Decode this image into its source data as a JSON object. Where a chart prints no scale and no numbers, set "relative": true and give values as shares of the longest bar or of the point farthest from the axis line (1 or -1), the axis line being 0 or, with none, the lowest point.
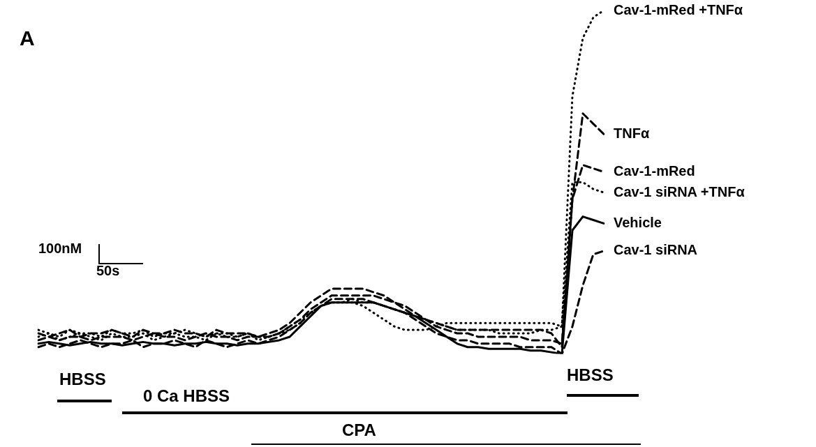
{
  "chart_data": {
    "type": "line",
    "relative": true,
    "legend": false,
    "grid": false,
    "marker": "none",
    "categories": [
      null,
      null,
      null,
      null,
      null,
      null,
      null,
      null,
      null,
      null,
      null,
      null,
      null,
      null,
      null,
      null,
      null,
      null,
      null,
      null,
      null,
      null,
      null,
      null,
      null,
      null,
      null,
      null,
      null,
      null,
      null,
      null,
      null,
      null,
      null,
      null,
      null,
      null,
      null,
      null,
      null,
      null,
      null,
      null,
      null,
      null,
      null,
      null,
      null,
      null,
      null,
      null,
      null,
      null,
      null
    ],
    "series": [
      {
        "name": "Cav-1-mRed +TNFα",
        "color": "#000000",
        "line_style": "dotted",
        "values": [
          0.05,
          0.06,
          0.04,
          0.05,
          0.06,
          0.05,
          0.04,
          0.06,
          0.05,
          0.05,
          0.06,
          0.04,
          0.05,
          0.06,
          0.05,
          0.05,
          0.04,
          0.06,
          0.05,
          0.05,
          0.06,
          0.04,
          0.05,
          0.06,
          0.08,
          0.1,
          0.12,
          0.14,
          0.15,
          0.15,
          0.16,
          0.15,
          0.15,
          0.14,
          0.13,
          0.12,
          0.11,
          0.1,
          0.09,
          0.08,
          0.07,
          0.07,
          0.07,
          0.07,
          0.06,
          0.06,
          0.06,
          0.06,
          0.07,
          0.07,
          0.08,
          0.75,
          0.92,
          0.98,
          1
        ]
      },
      {
        "name": "TNFα",
        "color": "#000000",
        "line_style": "dashed",
        "values": [
          0.06,
          0.05,
          0.06,
          0.07,
          0.05,
          0.06,
          0.06,
          0.07,
          0.06,
          0.05,
          0.07,
          0.06,
          0.06,
          0.07,
          0.06,
          0.06,
          0.05,
          0.07,
          0.06,
          0.06,
          0.06,
          0.05,
          0.06,
          0.07,
          0.09,
          0.12,
          0.15,
          0.17,
          0.19,
          0.19,
          0.19,
          0.19,
          0.18,
          0.17,
          0.15,
          0.13,
          0.11,
          0.1,
          0.09,
          0.08,
          0.07,
          0.07,
          0.07,
          0.07,
          0.07,
          0.07,
          0.07,
          0.07,
          0.07,
          0.06,
          0.02,
          0.45,
          0.7,
          0.67,
          0.64
        ]
      },
      {
        "name": "Cav-1-mRed",
        "color": "#000000",
        "line_style": "dashed",
        "values": [
          0.04,
          0.05,
          0.04,
          0.05,
          0.05,
          0.04,
          0.05,
          0.05,
          0.05,
          0.04,
          0.05,
          0.06,
          0.05,
          0.05,
          0.04,
          0.05,
          0.06,
          0.05,
          0.05,
          0.04,
          0.05,
          0.05,
          0.05,
          0.06,
          0.08,
          0.1,
          0.13,
          0.15,
          0.17,
          0.17,
          0.17,
          0.17,
          0.17,
          0.16,
          0.15,
          0.14,
          0.12,
          0.1,
          0.08,
          0.07,
          0.06,
          0.06,
          0.05,
          0.05,
          0.05,
          0.05,
          0.05,
          0.04,
          0.04,
          0.04,
          0.03,
          0.45,
          0.55,
          0.54,
          0.53
        ]
      },
      {
        "name": "Cav-1 siRNA +TNFα",
        "color": "#000000",
        "line_style": "dotted",
        "values": [
          0.07,
          0.06,
          0.05,
          0.07,
          0.06,
          0.06,
          0.05,
          0.07,
          0.06,
          0.06,
          0.07,
          0.05,
          0.06,
          0.06,
          0.07,
          0.06,
          0.05,
          0.06,
          0.06,
          0.05,
          0.06,
          0.05,
          0.05,
          0.06,
          0.07,
          0.09,
          0.12,
          0.14,
          0.15,
          0.15,
          0.15,
          0.14,
          0.12,
          0.1,
          0.08,
          0.07,
          0.07,
          0.07,
          0.08,
          0.09,
          0.09,
          0.09,
          0.09,
          0.09,
          0.09,
          0.09,
          0.09,
          0.09,
          0.09,
          0.09,
          0.08,
          0.5,
          0.5,
          0.48,
          0.47
        ]
      },
      {
        "name": "Vehicle",
        "color": "#000000",
        "line_style": "solid",
        "values": [
          0.03,
          0.035,
          0.03,
          0.025,
          0.03,
          0.035,
          0.03,
          0.03,
          0.025,
          0.03,
          0.035,
          0.03,
          0.03,
          0.025,
          0.03,
          0.03,
          0.035,
          0.03,
          0.03,
          0.025,
          0.03,
          0.03,
          0.035,
          0.04,
          0.05,
          0.08,
          0.11,
          0.14,
          0.15,
          0.15,
          0.15,
          0.15,
          0.15,
          0.14,
          0.13,
          0.12,
          0.11,
          0.09,
          0.07,
          0.05,
          0.03,
          0.02,
          0.02,
          0.015,
          0.015,
          0.015,
          0.015,
          0.01,
          0.01,
          0.005,
          0,
          0.36,
          0.4,
          0.39,
          0.38
        ]
      },
      {
        "name": "Cav-1 siRNA",
        "color": "#000000",
        "line_style": "dashed",
        "values": [
          0.02,
          0.03,
          0.02,
          0.03,
          0.04,
          0.03,
          0.02,
          0.03,
          0.03,
          0.04,
          0.02,
          0.03,
          0.03,
          0.04,
          0.03,
          0.02,
          0.04,
          0.03,
          0.02,
          0.03,
          0.04,
          0.03,
          0.04,
          0.05,
          0.07,
          0.09,
          0.12,
          0.14,
          0.16,
          0.16,
          0.16,
          0.16,
          0.15,
          0.14,
          0.13,
          0.12,
          0.1,
          0.08,
          0.06,
          0.05,
          0.04,
          0.04,
          0.03,
          0.03,
          0.03,
          0.03,
          0.02,
          0.02,
          0.02,
          0.02,
          0,
          0.08,
          0.2,
          0.29,
          0.3
        ]
      }
    ],
    "annotations": [
      "A",
      "100nM",
      "50s",
      "HBSS",
      "0 Ca HBSS",
      "CPA",
      "HBSS"
    ]
  }
}
